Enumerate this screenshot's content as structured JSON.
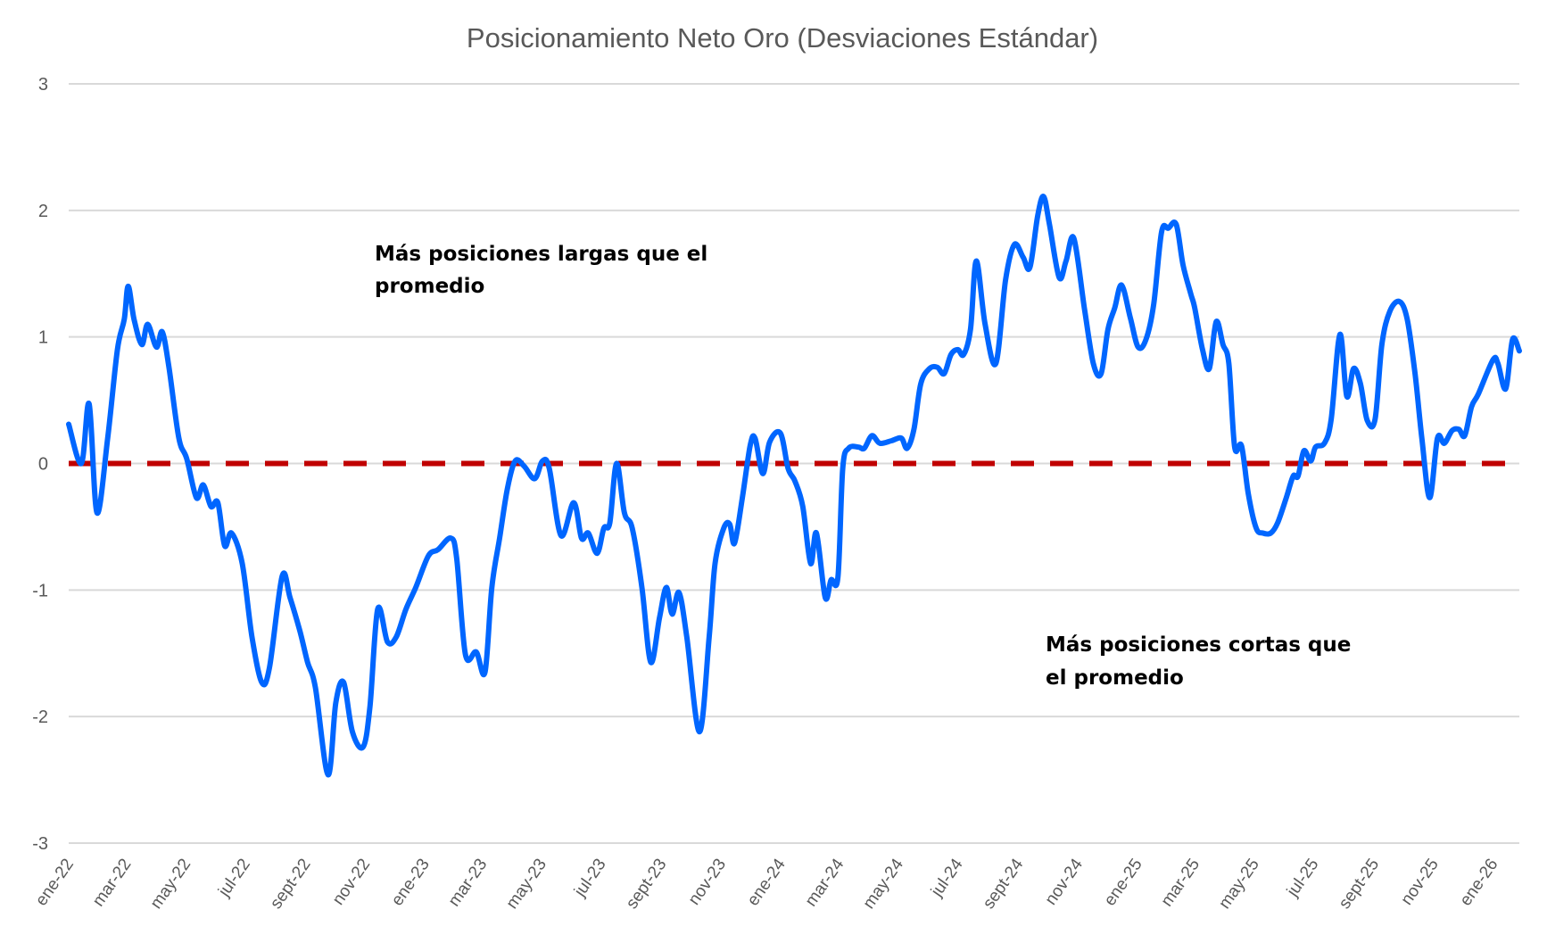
{
  "chart_data": {
    "type": "line",
    "title": "Posicionamiento Neto Oro (Desviaciones Estándar)",
    "xlabel": "",
    "ylabel": "",
    "ylim": [
      -3,
      3
    ],
    "yticks": [
      "3",
      "2",
      "1",
      "0",
      "-1",
      "-2",
      "-3"
    ],
    "xlim": [
      "2022-01-01",
      "2026-01-28"
    ],
    "xticks": [
      "ene-22",
      "mar-22",
      "may-22",
      "jul-22",
      "sept-22",
      "nov-22",
      "ene-23",
      "mar-23",
      "may-23",
      "jul-23",
      "sept-23",
      "nov-23",
      "ene-24",
      "mar-24",
      "may-24",
      "jul-24",
      "sept-24",
      "nov-24",
      "ene-25",
      "mar-25",
      "may-25",
      "jul-25",
      "sept-25",
      "nov-25",
      "ene-26"
    ],
    "grid": true,
    "legend": "none",
    "reference_line": {
      "value": 0,
      "style": "dashed",
      "color": "#C00000"
    },
    "series": [
      {
        "color": "#0066FF",
        "points": [
          [
            "2022-01-01",
            0.31
          ],
          [
            "2022-01-14",
            0.0
          ],
          [
            "2022-01-22",
            0.47
          ],
          [
            "2022-01-30",
            -0.39
          ],
          [
            "2022-02-10",
            0.2
          ],
          [
            "2022-02-20",
            0.9
          ],
          [
            "2022-02-27",
            1.14
          ],
          [
            "2022-03-03",
            1.4
          ],
          [
            "2022-03-09",
            1.14
          ],
          [
            "2022-03-17",
            0.94
          ],
          [
            "2022-03-23",
            1.1
          ],
          [
            "2022-04-01",
            0.92
          ],
          [
            "2022-04-07",
            1.04
          ],
          [
            "2022-04-14",
            0.75
          ],
          [
            "2022-04-24",
            0.2
          ],
          [
            "2022-05-02",
            0.04
          ],
          [
            "2022-05-12",
            -0.27
          ],
          [
            "2022-05-19",
            -0.17
          ],
          [
            "2022-05-27",
            -0.34
          ],
          [
            "2022-06-03",
            -0.31
          ],
          [
            "2022-06-10",
            -0.65
          ],
          [
            "2022-06-17",
            -0.55
          ],
          [
            "2022-06-28",
            -0.79
          ],
          [
            "2022-07-08",
            -1.37
          ],
          [
            "2022-07-18",
            -1.73
          ],
          [
            "2022-07-26",
            -1.61
          ],
          [
            "2022-08-08",
            -0.89
          ],
          [
            "2022-08-16",
            -1.06
          ],
          [
            "2022-08-26",
            -1.32
          ],
          [
            "2022-09-03",
            -1.57
          ],
          [
            "2022-09-11",
            -1.77
          ],
          [
            "2022-09-24",
            -2.46
          ],
          [
            "2022-10-02",
            -1.89
          ],
          [
            "2022-10-10",
            -1.73
          ],
          [
            "2022-10-19",
            -2.12
          ],
          [
            "2022-10-30",
            -2.24
          ],
          [
            "2022-11-06",
            -1.92
          ],
          [
            "2022-11-14",
            -1.15
          ],
          [
            "2022-11-24",
            -1.41
          ],
          [
            "2022-12-03",
            -1.37
          ],
          [
            "2022-12-13",
            -1.15
          ],
          [
            "2022-12-23",
            -0.98
          ],
          [
            "2023-01-05",
            -0.73
          ],
          [
            "2023-01-15",
            -0.68
          ],
          [
            "2023-01-28",
            -0.59
          ],
          [
            "2023-02-03",
            -0.75
          ],
          [
            "2023-02-12",
            -1.51
          ],
          [
            "2023-02-23",
            -1.49
          ],
          [
            "2023-03-04",
            -1.65
          ],
          [
            "2023-03-11",
            -0.98
          ],
          [
            "2023-03-19",
            -0.59
          ],
          [
            "2023-03-27",
            -0.2
          ],
          [
            "2023-04-04",
            0.02
          ],
          [
            "2023-04-13",
            -0.02
          ],
          [
            "2023-04-24",
            -0.12
          ],
          [
            "2023-05-02",
            0.02
          ],
          [
            "2023-05-09",
            -0.04
          ],
          [
            "2023-05-21",
            -0.57
          ],
          [
            "2023-06-03",
            -0.31
          ],
          [
            "2023-06-11",
            -0.59
          ],
          [
            "2023-06-18",
            -0.55
          ],
          [
            "2023-06-27",
            -0.71
          ],
          [
            "2023-07-04",
            -0.51
          ],
          [
            "2023-07-10",
            -0.47
          ],
          [
            "2023-07-17",
            0.0
          ],
          [
            "2023-07-25",
            -0.39
          ],
          [
            "2023-08-02",
            -0.51
          ],
          [
            "2023-08-12",
            -0.98
          ],
          [
            "2023-08-21",
            -1.57
          ],
          [
            "2023-08-30",
            -1.22
          ],
          [
            "2023-09-06",
            -0.98
          ],
          [
            "2023-09-12",
            -1.19
          ],
          [
            "2023-09-19",
            -1.02
          ],
          [
            "2023-09-27",
            -1.37
          ],
          [
            "2023-10-10",
            -2.12
          ],
          [
            "2023-10-20",
            -1.37
          ],
          [
            "2023-10-26",
            -0.79
          ],
          [
            "2023-11-04",
            -0.51
          ],
          [
            "2023-11-10",
            -0.48
          ],
          [
            "2023-11-15",
            -0.63
          ],
          [
            "2023-11-23",
            -0.27
          ],
          [
            "2023-12-01",
            0.14
          ],
          [
            "2023-12-06",
            0.2
          ],
          [
            "2023-12-14",
            -0.08
          ],
          [
            "2023-12-21",
            0.17
          ],
          [
            "2024-01-01",
            0.24
          ],
          [
            "2024-01-09",
            -0.04
          ],
          [
            "2024-01-16",
            -0.14
          ],
          [
            "2024-01-24",
            -0.34
          ],
          [
            "2024-02-01",
            -0.79
          ],
          [
            "2024-02-07",
            -0.55
          ],
          [
            "2024-02-16",
            -1.06
          ],
          [
            "2024-02-22",
            -0.92
          ],
          [
            "2024-02-29",
            -0.9
          ],
          [
            "2024-03-05",
            -0.04
          ],
          [
            "2024-03-11",
            0.12
          ],
          [
            "2024-03-21",
            0.13
          ],
          [
            "2024-03-27",
            0.12
          ],
          [
            "2024-04-04",
            0.22
          ],
          [
            "2024-04-12",
            0.16
          ],
          [
            "2024-04-24",
            0.18
          ],
          [
            "2024-05-04",
            0.2
          ],
          [
            "2024-05-10",
            0.12
          ],
          [
            "2024-05-17",
            0.27
          ],
          [
            "2024-05-24",
            0.63
          ],
          [
            "2024-06-02",
            0.75
          ],
          [
            "2024-06-10",
            0.76
          ],
          [
            "2024-06-17",
            0.71
          ],
          [
            "2024-06-24",
            0.86
          ],
          [
            "2024-07-01",
            0.9
          ],
          [
            "2024-07-07",
            0.86
          ],
          [
            "2024-07-14",
            1.06
          ],
          [
            "2024-07-20",
            1.6
          ],
          [
            "2024-07-29",
            1.1
          ],
          [
            "2024-08-09",
            0.79
          ],
          [
            "2024-08-19",
            1.45
          ],
          [
            "2024-08-28",
            1.73
          ],
          [
            "2024-09-06",
            1.63
          ],
          [
            "2024-09-13",
            1.55
          ],
          [
            "2024-09-21",
            1.96
          ],
          [
            "2024-09-27",
            2.11
          ],
          [
            "2024-10-03",
            1.89
          ],
          [
            "2024-10-13",
            1.47
          ],
          [
            "2024-10-20",
            1.6
          ],
          [
            "2024-10-28",
            1.78
          ],
          [
            "2024-11-08",
            1.22
          ],
          [
            "2024-11-17",
            0.79
          ],
          [
            "2024-11-25",
            0.71
          ],
          [
            "2024-12-02",
            1.06
          ],
          [
            "2024-12-09",
            1.23
          ],
          [
            "2024-12-16",
            1.41
          ],
          [
            "2024-12-25",
            1.15
          ],
          [
            "2025-01-02",
            0.92
          ],
          [
            "2025-01-10",
            0.98
          ],
          [
            "2025-01-18",
            1.26
          ],
          [
            "2025-01-26",
            1.83
          ],
          [
            "2025-02-02",
            1.86
          ],
          [
            "2025-02-10",
            1.89
          ],
          [
            "2025-02-17",
            1.57
          ],
          [
            "2025-02-25",
            1.34
          ],
          [
            "2025-03-01",
            1.23
          ],
          [
            "2025-03-09",
            0.9
          ],
          [
            "2025-03-16",
            0.75
          ],
          [
            "2025-03-23",
            1.12
          ],
          [
            "2025-03-30",
            0.94
          ],
          [
            "2025-04-05",
            0.79
          ],
          [
            "2025-04-11",
            0.13
          ],
          [
            "2025-04-18",
            0.14
          ],
          [
            "2025-04-25",
            -0.24
          ],
          [
            "2025-05-03",
            -0.51
          ],
          [
            "2025-05-10",
            -0.55
          ],
          [
            "2025-05-18",
            -0.55
          ],
          [
            "2025-05-25",
            -0.47
          ],
          [
            "2025-06-03",
            -0.27
          ],
          [
            "2025-06-10",
            -0.1
          ],
          [
            "2025-06-15",
            -0.1
          ],
          [
            "2025-06-21",
            0.1
          ],
          [
            "2025-06-28",
            0.02
          ],
          [
            "2025-07-03",
            0.13
          ],
          [
            "2025-07-12",
            0.16
          ],
          [
            "2025-07-19",
            0.35
          ],
          [
            "2025-07-28",
            1.02
          ],
          [
            "2025-08-04",
            0.53
          ],
          [
            "2025-08-11",
            0.75
          ],
          [
            "2025-08-18",
            0.63
          ],
          [
            "2025-08-25",
            0.34
          ],
          [
            "2025-09-02",
            0.35
          ],
          [
            "2025-09-09",
            0.94
          ],
          [
            "2025-09-17",
            1.2
          ],
          [
            "2025-09-27",
            1.28
          ],
          [
            "2025-10-05",
            1.14
          ],
          [
            "2025-10-13",
            0.71
          ],
          [
            "2025-10-20",
            0.2
          ],
          [
            "2025-10-28",
            -0.27
          ],
          [
            "2025-11-05",
            0.2
          ],
          [
            "2025-11-12",
            0.16
          ],
          [
            "2025-11-20",
            0.26
          ],
          [
            "2025-11-27",
            0.27
          ],
          [
            "2025-12-03",
            0.22
          ],
          [
            "2025-12-10",
            0.45
          ],
          [
            "2025-12-17",
            0.55
          ],
          [
            "2026-01-01",
            0.82
          ],
          [
            "2026-01-06",
            0.79
          ],
          [
            "2026-01-14",
            0.59
          ],
          [
            "2026-01-21",
            0.98
          ],
          [
            "2026-01-28",
            0.89
          ]
        ]
      }
    ],
    "annotations": [
      {
        "lines": [
          "Más posiciones largas que el",
          "promedio"
        ]
      },
      {
        "lines": [
          "Más posiciones cortas que",
          "el promedio"
        ]
      }
    ]
  }
}
